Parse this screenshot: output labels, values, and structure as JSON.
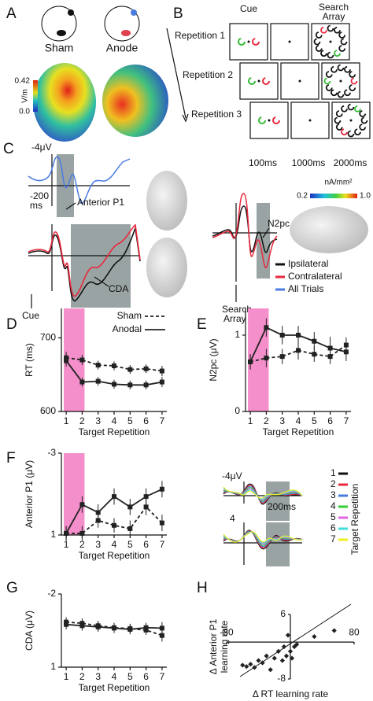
{
  "panel_labels": [
    "A",
    "B",
    "C",
    "D",
    "E",
    "F",
    "G",
    "H"
  ],
  "panel_a": {
    "conditions": [
      "Sham",
      "Anode"
    ],
    "colorbar_max": "0.42",
    "colorbar_min": "0.0",
    "colorbar_unit": "V/m"
  },
  "panel_b": {
    "cue": "Cue",
    "search_array": [
      "Search",
      "Array"
    ],
    "rows": [
      "Repetition 1",
      "Repetition 2",
      "Repetition 3"
    ],
    "durations": [
      "100ms",
      "1000ms",
      "2000ms"
    ]
  },
  "panel_c": {
    "amp_scale": "-4μV",
    "time_scale": [
      "-200",
      "ms"
    ],
    "anterior_p1": "Anterior P1",
    "cda": "CDA",
    "cue": "Cue",
    "n2pc": "N2pc",
    "search_array": [
      "Search",
      "Array"
    ],
    "colorbar_unit": "nA/mm²",
    "colorbar_min": "0.2",
    "colorbar_max": "1.0",
    "legend": [
      {
        "label": "Ipsilateral",
        "color": "#111111"
      },
      {
        "label": "Contralateral",
        "color": "#e8283c"
      },
      {
        "label": "All Trials",
        "color": "#4a7be0"
      }
    ]
  },
  "panel_f_inset": {
    "amp_top": "-4μV",
    "amp_bottom": "4",
    "time_scale": "200ms",
    "legend_title": "Target Repetition",
    "legend": [
      {
        "label": "1",
        "color": "#111111"
      },
      {
        "label": "2",
        "color": "#e8283c"
      },
      {
        "label": "3",
        "color": "#4a7be0"
      },
      {
        "label": "4",
        "color": "#33cc33"
      },
      {
        "label": "5",
        "color": "#e066e0"
      },
      {
        "label": "6",
        "color": "#44dddd"
      },
      {
        "label": "7",
        "color": "#eeee22"
      }
    ]
  },
  "chart_data": [
    {
      "type": "line",
      "xlabel": "Target Repetition",
      "ylabel": "RT (ms)",
      "x": [
        1,
        2,
        3,
        4,
        5,
        6,
        7
      ],
      "xlim": [
        0.7,
        7.3
      ],
      "xticks": [
        1,
        2,
        3,
        4,
        5,
        6,
        7
      ],
      "ylim": [
        600,
        740
      ],
      "yticks": [
        600,
        700
      ],
      "highlight_x": [
        0.85,
        2.15
      ],
      "highlight_color": "#f48fcb",
      "legend": "upper right",
      "series": [
        {
          "name": "Sham",
          "color": "#222222",
          "dash": true,
          "values": [
            673,
            670,
            663,
            662,
            657,
            658,
            655
          ],
          "errors": [
            8,
            7,
            6,
            6,
            6,
            6,
            7
          ]
        },
        {
          "name": "Anodal",
          "color": "#222222",
          "dash": false,
          "values": [
            669,
            640,
            641,
            637,
            636,
            636,
            640
          ],
          "errors": [
            8,
            6,
            6,
            6,
            6,
            6,
            7
          ]
        }
      ]
    },
    {
      "type": "line",
      "xlabel": "Target Repetition",
      "ylabel": "N2pc (μV)",
      "x": [
        1,
        2,
        3,
        4,
        5,
        6,
        7
      ],
      "xlim": [
        0.7,
        7.3
      ],
      "xticks": [
        1,
        2,
        3,
        4,
        5,
        6,
        7
      ],
      "ylim": [
        0,
        1.35
      ],
      "yticks": [
        0,
        1
      ],
      "highlight_x": [
        0.85,
        2.15
      ],
      "highlight_color": "#f48fcb",
      "series": [
        {
          "color": "#222222",
          "dash": true,
          "values": [
            0.65,
            0.7,
            0.72,
            0.8,
            0.75,
            0.72,
            0.87
          ],
          "errors": [
            0.1,
            0.12,
            0.1,
            0.12,
            0.1,
            0.1,
            0.1
          ]
        },
        {
          "color": "#222222",
          "dash": false,
          "values": [
            0.65,
            1.1,
            1.0,
            1.0,
            0.92,
            0.83,
            0.78
          ],
          "errors": [
            0.1,
            0.12,
            0.12,
            0.12,
            0.12,
            0.15,
            0.12
          ]
        }
      ]
    },
    {
      "type": "line",
      "xlabel": "Target Repetition",
      "ylabel": "Anterior P1 (μV)",
      "x": [
        1,
        2,
        3,
        4,
        5,
        6,
        7
      ],
      "xlim": [
        0.7,
        7.3
      ],
      "xticks": [
        1,
        2,
        3,
        4,
        5,
        6,
        7
      ],
      "ylim": [
        1,
        -3
      ],
      "yticks": [
        -3,
        1
      ],
      "highlight_x": [
        0.85,
        2.15
      ],
      "highlight_color": "#f48fcb",
      "series": [
        {
          "color": "#222222",
          "dash": true,
          "values": [
            0.92,
            0.92,
            0.29,
            0.53,
            0.69,
            -0.37,
            0.41
          ],
          "errors": [
            0.35,
            0.35,
            0.35,
            0.35,
            0.4,
            0.4,
            0.4
          ]
        },
        {
          "color": "#222222",
          "dash": false,
          "values": [
            0.92,
            -0.49,
            -0.1,
            -0.88,
            -0.37,
            -0.88,
            -1.24
          ],
          "errors": [
            0.35,
            0.4,
            0.4,
            0.4,
            0.4,
            0.4,
            0.4
          ]
        }
      ]
    },
    {
      "type": "line",
      "xlabel": "Target Repetition",
      "ylabel": "CDA (μV)",
      "x": [
        1,
        2,
        3,
        4,
        5,
        6,
        7
      ],
      "xlim": [
        0.7,
        7.3
      ],
      "xticks": [
        1,
        2,
        3,
        4,
        5,
        6,
        7
      ],
      "ylim": [
        1,
        -2
      ],
      "yticks": [
        -2,
        1
      ],
      "series": [
        {
          "color": "#222222",
          "dash": true,
          "values": [
            -0.85,
            -0.8,
            -0.7,
            -0.62,
            -0.58,
            -0.52,
            -0.3
          ],
          "errors": [
            0.2,
            0.2,
            0.2,
            0.2,
            0.2,
            0.2,
            0.25
          ]
        },
        {
          "color": "#222222",
          "dash": false,
          "values": [
            -0.75,
            -0.7,
            -0.65,
            -0.6,
            -0.55,
            -0.62,
            -0.6
          ],
          "errors": [
            0.2,
            0.2,
            0.2,
            0.2,
            0.2,
            0.2,
            0.25
          ]
        }
      ]
    },
    {
      "type": "scatter",
      "xlabel": "Δ RT learning rate",
      "ylabel": [
        "Δ Anterior P1",
        "learning rate"
      ],
      "xlim": [
        -80,
        80
      ],
      "xticks": [
        -80,
        80
      ],
      "ylim": [
        -8,
        6
      ],
      "yticks": [
        -8,
        6
      ],
      "color": "#222222",
      "x": [
        -60,
        -55,
        -50,
        -45,
        -40,
        -35,
        -30,
        -25,
        -20,
        -15,
        -10,
        -8,
        -5,
        -3,
        0,
        2,
        5,
        8,
        30,
        55
      ],
      "values": [
        -5,
        -5.3,
        -4.8,
        -5.5,
        -4,
        -4.5,
        -3,
        -6,
        -3.5,
        -2,
        -4,
        -1,
        -3,
        1.5,
        -2,
        -3.5,
        -1,
        -0.5,
        1.2,
        2.5
      ]
    }
  ]
}
